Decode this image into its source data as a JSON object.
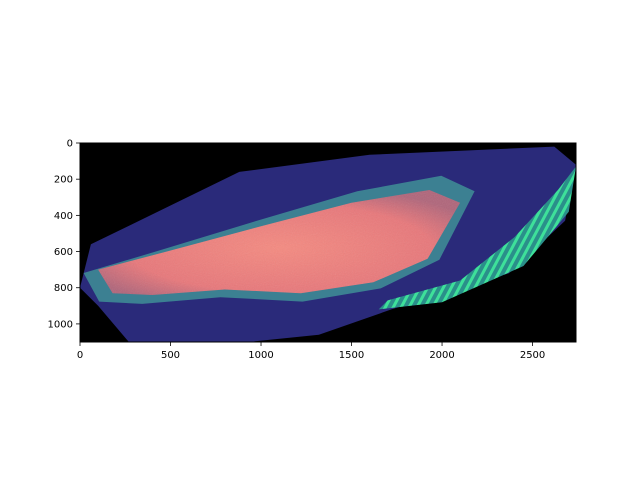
{
  "chart_data": {
    "type": "heatmap",
    "title": "",
    "xlabel": "",
    "ylabel": "",
    "xlim": [
      0,
      2740
    ],
    "ylim": [
      1100,
      0
    ],
    "y_inverted": true,
    "x_ticks": [
      0,
      500,
      1000,
      1500,
      2000,
      2500
    ],
    "y_ticks": [
      0,
      200,
      400,
      600,
      800,
      1000
    ],
    "background_color": "#000000",
    "colormap": [
      "#2a2a7a",
      "#3a4f9c",
      "#3f8f96",
      "#3ecf92",
      "#f07a78"
    ],
    "valid_region_outline": [
      [
        0,
        800
      ],
      [
        60,
        560
      ],
      [
        880,
        160
      ],
      [
        1600,
        65
      ],
      [
        2620,
        20
      ],
      [
        2740,
        120
      ],
      [
        2680,
        430
      ],
      [
        2370,
        720
      ],
      [
        1720,
        920
      ],
      [
        1320,
        1060
      ],
      [
        930,
        1100
      ],
      [
        270,
        1100
      ],
      [
        100,
        900
      ]
    ],
    "core_region_outline": [
      [
        100,
        700
      ],
      [
        480,
        600
      ],
      [
        1000,
        460
      ],
      [
        1500,
        330
      ],
      [
        1930,
        260
      ],
      [
        2100,
        330
      ],
      [
        1920,
        640
      ],
      [
        1620,
        770
      ],
      [
        1220,
        830
      ],
      [
        800,
        810
      ],
      [
        400,
        840
      ],
      [
        180,
        830
      ]
    ],
    "fringe_region_outline": [
      [
        1700,
        870
      ],
      [
        2100,
        760
      ],
      [
        2400,
        520
      ],
      [
        2640,
        260
      ],
      [
        2740,
        130
      ],
      [
        2700,
        380
      ],
      [
        2450,
        680
      ],
      [
        2000,
        880
      ],
      [
        1650,
        920
      ]
    ]
  }
}
